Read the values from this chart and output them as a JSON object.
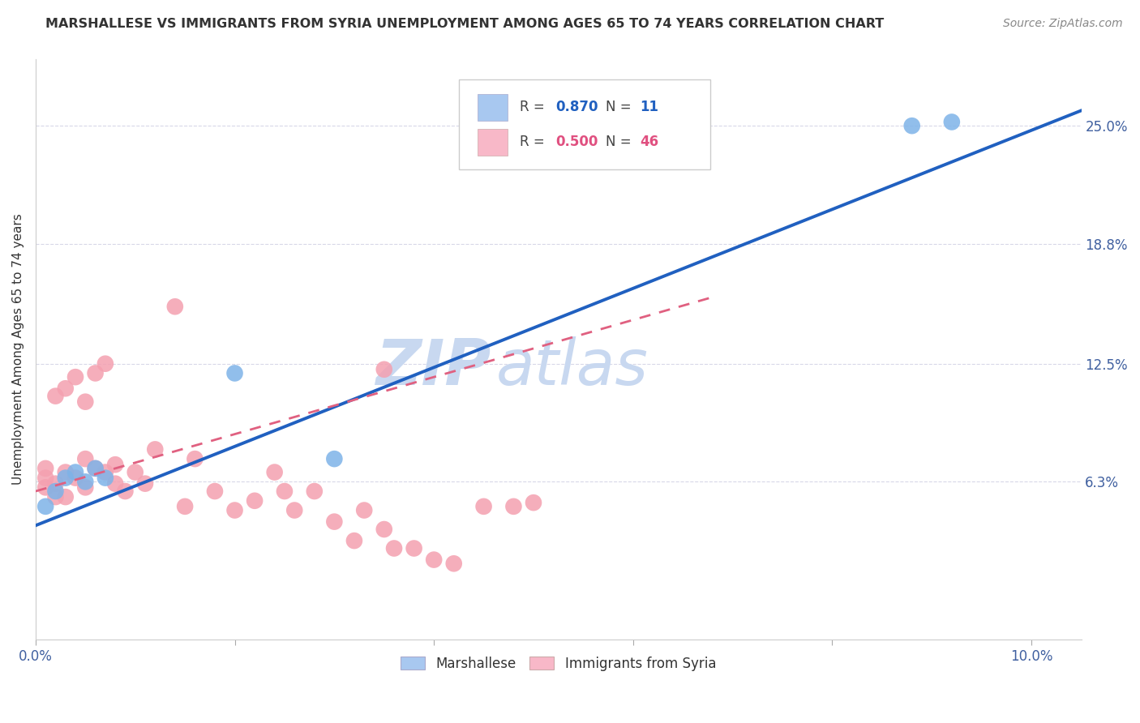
{
  "title": "MARSHALLESE VS IMMIGRANTS FROM SYRIA UNEMPLOYMENT AMONG AGES 65 TO 74 YEARS CORRELATION CHART",
  "source": "Source: ZipAtlas.com",
  "ylabel": "Unemployment Among Ages 65 to 74 years",
  "xlim": [
    0.0,
    0.105
  ],
  "ylim": [
    -0.02,
    0.285
  ],
  "xticks": [
    0.0,
    0.02,
    0.04,
    0.06,
    0.08,
    0.1
  ],
  "xticklabels": [
    "0.0%",
    "",
    "",
    "",
    "",
    "10.0%"
  ],
  "ytick_positions": [
    0.063,
    0.125,
    0.188,
    0.25
  ],
  "ytick_labels": [
    "6.3%",
    "12.5%",
    "18.8%",
    "25.0%"
  ],
  "r_marshallese": 0.87,
  "n_marshallese": 11,
  "r_syria": 0.5,
  "n_syria": 46,
  "color_marshallese": "#7EB3E8",
  "color_syria": "#F4A0B0",
  "color_line_marshallese": "#2060C0",
  "color_line_syria": "#E06080",
  "watermark_zip": "ZIP",
  "watermark_atlas": "atlas",
  "watermark_color": "#C8D8F0",
  "legend_box_color_marshallese": "#A8C8F0",
  "legend_box_color_syria": "#F8B8C8",
  "marshallese_x": [
    0.001,
    0.002,
    0.003,
    0.004,
    0.005,
    0.006,
    0.007,
    0.02,
    0.03,
    0.088,
    0.092
  ],
  "marshallese_y": [
    0.05,
    0.058,
    0.065,
    0.068,
    0.063,
    0.07,
    0.065,
    0.12,
    0.075,
    0.25,
    0.252
  ],
  "syria_x": [
    0.001,
    0.001,
    0.001,
    0.002,
    0.002,
    0.002,
    0.003,
    0.003,
    0.003,
    0.004,
    0.004,
    0.005,
    0.005,
    0.005,
    0.006,
    0.006,
    0.007,
    0.007,
    0.008,
    0.008,
    0.009,
    0.01,
    0.011,
    0.012,
    0.014,
    0.015,
    0.016,
    0.018,
    0.02,
    0.022,
    0.024,
    0.025,
    0.026,
    0.028,
    0.03,
    0.032,
    0.033,
    0.035,
    0.036,
    0.038,
    0.04,
    0.042,
    0.045,
    0.048,
    0.05,
    0.035
  ],
  "syria_y": [
    0.06,
    0.065,
    0.07,
    0.055,
    0.062,
    0.108,
    0.055,
    0.068,
    0.112,
    0.065,
    0.118,
    0.06,
    0.075,
    0.105,
    0.07,
    0.12,
    0.068,
    0.125,
    0.062,
    0.072,
    0.058,
    0.068,
    0.062,
    0.08,
    0.155,
    0.05,
    0.075,
    0.058,
    0.048,
    0.053,
    0.068,
    0.058,
    0.048,
    0.058,
    0.042,
    0.032,
    0.048,
    0.038,
    0.028,
    0.028,
    0.022,
    0.02,
    0.05,
    0.05,
    0.052,
    0.122
  ],
  "grid_color": "#D8D8E8",
  "bg_color": "#FFFFFF",
  "line_blue_x0": 0.0,
  "line_blue_y0": 0.04,
  "line_blue_x1": 0.105,
  "line_blue_y1": 0.258,
  "line_pink_x0": 0.0,
  "line_pink_y0": 0.058,
  "line_pink_x1": 0.068,
  "line_pink_y1": 0.16
}
